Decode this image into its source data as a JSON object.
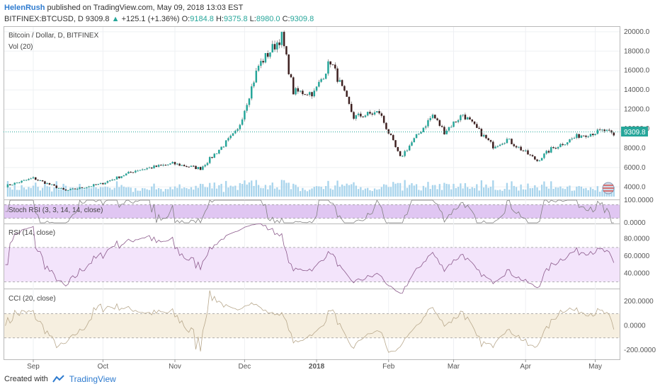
{
  "header": {
    "user": "HelenRush",
    "published": "published on TradingView.com, May 09, 2018 13:03 EST",
    "symbol": "BITFINEX:BTCUSD, D",
    "last": "9309.8",
    "change_arrow": "▲",
    "change": "+125.1 (+1.36%)",
    "o_label": "O:",
    "o_val": "9184.8",
    "h_label": "H:",
    "h_val": "9375.8",
    "l_label": "L:",
    "l_val": "8980.0",
    "c_label": "C:",
    "c_val": "9309.8"
  },
  "colors": {
    "up": "#26a69a",
    "down": "#3d1f1f",
    "wick": "#555555",
    "volume": "#a8d4ec",
    "vol_ma": "#6aa9d9",
    "stoch_band": "#e0c6f2",
    "rsi_band": "#f3e4fb",
    "cci_band": "#f6efe0",
    "rsi_line": "#8b5a8b",
    "cci_line": "#b8a88c",
    "price_tag": "#26a69a"
  },
  "footer": {
    "created_with": "Created with",
    "brand": "TradingView"
  },
  "chart_data": [
    {
      "type": "candlestick",
      "title": "Bitcoin / Dollar, D, BITFINEX",
      "subtitle": "Vol (20)",
      "ylim": [
        3000,
        20500
      ],
      "y_ticks": [
        "20000.0",
        "18000.0",
        "16000.0",
        "14000.0",
        "12000.0",
        "10000.0",
        "8000.0",
        "6000.0",
        "4000.0"
      ],
      "last_price_label": "9309.8",
      "x_ticks": [
        "Sep",
        "Oct",
        "Nov",
        "Dec",
        "2018",
        "Feb",
        "Mar",
        "Apr",
        "May"
      ],
      "close_anchors": [
        {
          "date": "2017-08-20",
          "close": 4100
        },
        {
          "date": "2017-09-01",
          "close": 4900
        },
        {
          "date": "2017-09-15",
          "close": 3600
        },
        {
          "date": "2017-09-30",
          "close": 4300
        },
        {
          "date": "2017-10-15",
          "close": 5700
        },
        {
          "date": "2017-10-31",
          "close": 6400
        },
        {
          "date": "2017-11-12",
          "close": 5900
        },
        {
          "date": "2017-11-28",
          "close": 9800
        },
        {
          "date": "2017-12-07",
          "close": 16500
        },
        {
          "date": "2017-12-17",
          "close": 19500
        },
        {
          "date": "2017-12-22",
          "close": 13800
        },
        {
          "date": "2017-12-31",
          "close": 13700
        },
        {
          "date": "2018-01-07",
          "close": 17000
        },
        {
          "date": "2018-01-17",
          "close": 11200
        },
        {
          "date": "2018-01-28",
          "close": 11700
        },
        {
          "date": "2018-02-06",
          "close": 7000
        },
        {
          "date": "2018-02-20",
          "close": 11400
        },
        {
          "date": "2018-02-25",
          "close": 9700
        },
        {
          "date": "2018-03-05",
          "close": 11500
        },
        {
          "date": "2018-03-18",
          "close": 8200
        },
        {
          "date": "2018-03-24",
          "close": 8900
        },
        {
          "date": "2018-04-06",
          "close": 6700
        },
        {
          "date": "2018-04-12",
          "close": 7900
        },
        {
          "date": "2018-04-24",
          "close": 9300
        },
        {
          "date": "2018-05-05",
          "close": 9800
        },
        {
          "date": "2018-05-09",
          "close": 9309.8
        }
      ]
    },
    {
      "type": "line",
      "title": "Stoch RSI (3, 3, 14, 14, close)",
      "ylim": [
        0,
        100
      ],
      "y_ticks": [
        "100.0000",
        "0.0000"
      ],
      "band": [
        20,
        80
      ]
    },
    {
      "type": "line",
      "title": "RSI (14, close)",
      "ylim": [
        23,
        97
      ],
      "y_ticks": [
        "80.0000",
        "60.0000",
        "40.0000"
      ],
      "band": [
        30,
        70
      ]
    },
    {
      "type": "line",
      "title": "CCI (20, close)",
      "ylim": [
        -270,
        300
      ],
      "y_ticks": [
        "200.0000",
        "0.0000",
        "-200.0000"
      ],
      "band": [
        -100,
        100
      ]
    }
  ]
}
